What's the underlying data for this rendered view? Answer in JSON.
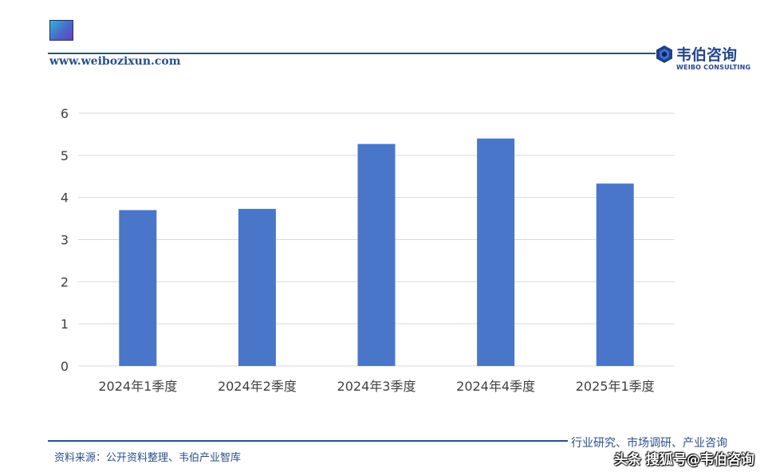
{
  "header": {
    "website": "www.weibozixun.com",
    "logo_cn": "韦伯咨询",
    "logo_en": "WEIBO CONSULTING"
  },
  "footer": {
    "source": "资料来源：公开资料整理、韦伯产业智库",
    "tagline": "行业研究、市场调研、产业咨询",
    "watermark": "头条 搜狐号@韦伯咨询"
  },
  "colors": {
    "bar": "#4a76c9",
    "grid": "#d9d9d9",
    "axis_text": "#404040",
    "brand": "#2b4f8a"
  },
  "chart_data": {
    "type": "bar",
    "categories": [
      "2024年1季度",
      "2024年2季度",
      "2024年3季度",
      "2024年4季度",
      "2025年1季度"
    ],
    "values": [
      3.7,
      3.73,
      5.27,
      5.4,
      4.33
    ],
    "title": "",
    "xlabel": "",
    "ylabel": "",
    "ylim": [
      0,
      6
    ],
    "yticks": [
      0,
      1,
      2,
      3,
      4,
      5,
      6
    ],
    "grid": true,
    "legend": "none"
  }
}
